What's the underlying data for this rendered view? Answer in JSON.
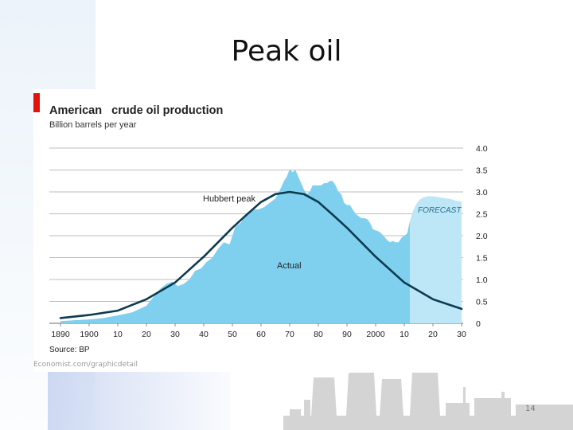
{
  "slide": {
    "title": "Peak oil",
    "credit": "Economist.com/graphicdetail",
    "page_number": "14"
  },
  "colors": {
    "actual_fill": "#7fd0ef",
    "forecast_fill": "#bde6f7",
    "hubbert_line": "#0d3b4f",
    "grid": "#bdbdbd",
    "accent_bar": "#e3120b"
  },
  "chart_data": {
    "type": "area",
    "title": "American   crude oil production",
    "subtitle": "Billion barrels per year",
    "source": "Source: BP",
    "x_tick_labels": [
      "1890",
      "1900",
      "10",
      "20",
      "30",
      "40",
      "50",
      "60",
      "70",
      "80",
      "90",
      "2000",
      "10",
      "20",
      "30"
    ],
    "x_ticks": [
      1890,
      1900,
      1910,
      1920,
      1930,
      1940,
      1950,
      1960,
      1970,
      1980,
      1990,
      2000,
      2010,
      2020,
      2030
    ],
    "xlim": [
      1890,
      2030
    ],
    "y_tick_labels": [
      "0",
      "0.5",
      "1.0",
      "1.5",
      "2.0",
      "2.5",
      "3.0",
      "3.5",
      "4.0"
    ],
    "y_ticks": [
      0,
      0.5,
      1.0,
      1.5,
      2.0,
      2.5,
      3.0,
      3.5,
      4.0
    ],
    "ylim": [
      0,
      4.0
    ],
    "grid": "horizontal",
    "annotations": {
      "hubbert_peak": "Hubbert peak",
      "actual": "Actual",
      "forecast": "FORECAST"
    },
    "series": [
      {
        "name": "Actual",
        "kind": "area",
        "x": [
          1890,
          1895,
          1900,
          1905,
          1910,
          1915,
          1920,
          1923,
          1925,
          1927,
          1929,
          1931,
          1933,
          1935,
          1937,
          1939,
          1941,
          1943,
          1945,
          1947,
          1949,
          1951,
          1953,
          1955,
          1957,
          1959,
          1961,
          1963,
          1965,
          1967,
          1968,
          1969,
          1970,
          1971,
          1972,
          1973,
          1974,
          1975,
          1976,
          1977,
          1978,
          1979,
          1980,
          1981,
          1982,
          1983,
          1984,
          1985,
          1986,
          1987,
          1988,
          1989,
          1990,
          1991,
          1992,
          1993,
          1994,
          1995,
          1996,
          1997,
          1998,
          1999,
          2000,
          2001,
          2002,
          2003,
          2004,
          2005,
          2006,
          2007,
          2008,
          2009,
          2010,
          2011,
          2012
        ],
        "y": [
          0.05,
          0.07,
          0.09,
          0.12,
          0.18,
          0.25,
          0.4,
          0.65,
          0.8,
          0.9,
          0.95,
          0.85,
          0.9,
          1.0,
          1.2,
          1.25,
          1.4,
          1.5,
          1.7,
          1.85,
          1.8,
          2.2,
          2.3,
          2.5,
          2.6,
          2.6,
          2.65,
          2.75,
          2.85,
          3.1,
          3.25,
          3.35,
          3.52,
          3.45,
          3.5,
          3.35,
          3.2,
          3.05,
          2.95,
          3.0,
          3.15,
          3.15,
          3.15,
          3.15,
          3.2,
          3.2,
          3.25,
          3.25,
          3.15,
          3.0,
          2.95,
          2.75,
          2.7,
          2.7,
          2.6,
          2.5,
          2.45,
          2.4,
          2.4,
          2.38,
          2.3,
          2.15,
          2.12,
          2.1,
          2.05,
          1.98,
          1.9,
          1.85,
          1.88,
          1.85,
          1.85,
          1.95,
          2.0,
          2.05,
          2.35
        ]
      },
      {
        "name": "FORECAST",
        "kind": "area",
        "x": [
          2012,
          2013,
          2014,
          2015,
          2016,
          2017,
          2018,
          2020,
          2022,
          2024,
          2026,
          2028,
          2030
        ],
        "y": [
          2.35,
          2.55,
          2.7,
          2.8,
          2.85,
          2.88,
          2.9,
          2.9,
          2.88,
          2.86,
          2.84,
          2.8,
          2.78
        ]
      },
      {
        "name": "Hubbert peak",
        "kind": "line",
        "x": [
          1890,
          1900,
          1910,
          1920,
          1930,
          1940,
          1950,
          1955,
          1960,
          1965,
          1970,
          1975,
          1980,
          1985,
          1990,
          2000,
          2010,
          2020,
          2030
        ],
        "y": [
          0.12,
          0.19,
          0.29,
          0.55,
          0.93,
          1.52,
          2.18,
          2.48,
          2.77,
          2.95,
          3.0,
          2.95,
          2.77,
          2.48,
          2.18,
          1.52,
          0.93,
          0.55,
          0.33
        ]
      }
    ]
  }
}
